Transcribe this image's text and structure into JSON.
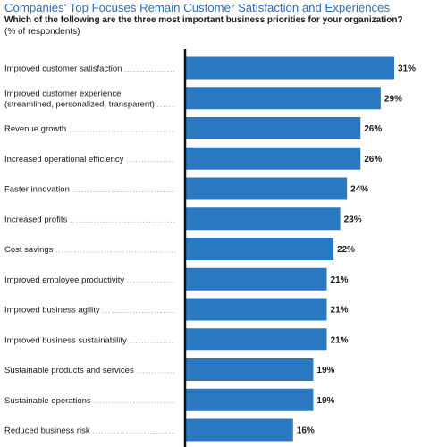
{
  "header": {
    "title": "Companies' Top Focuses Remain Customer Satisfaction and Experiences",
    "subtitle": "Which of the following are the three most important business priorities for your organization?",
    "note": "(% of respondents)"
  },
  "colors": {
    "bar": "#2b78c2",
    "axis": "#111111",
    "title": "#2e6fb4"
  },
  "chart_data": {
    "type": "bar",
    "orientation": "horizontal",
    "title": "Companies' Top Focuses Remain Customer Satisfaction and Experiences",
    "subtitle": "Which of the following are the three most important business priorities for your organization?",
    "unit": "(% of respondents)",
    "categories": [
      [
        "Improved customer satisfaction"
      ],
      [
        "Improved customer experience",
        "(streamlined, personalized, transparent)"
      ],
      [
        "Revenue growth"
      ],
      [
        "Increased operational efficiency"
      ],
      [
        "Faster innovation"
      ],
      [
        "Increased profits"
      ],
      [
        "Cost savings"
      ],
      [
        "Improved employee productivity"
      ],
      [
        "Improved business agility"
      ],
      [
        "Improved business sustainability"
      ],
      [
        "Sustainable products and services"
      ],
      [
        "Sustainable operations"
      ],
      [
        "Reduced business risk"
      ]
    ],
    "values": [
      31,
      29,
      26,
      26,
      24,
      23,
      22,
      21,
      21,
      21,
      19,
      19,
      16
    ],
    "value_labels": [
      "31%",
      "29%",
      "26%",
      "26%",
      "24%",
      "23%",
      "22%",
      "21%",
      "21%",
      "21%",
      "19%",
      "19%",
      "16%"
    ],
    "xlim": [
      0,
      31
    ],
    "grid": false,
    "legend": "none"
  }
}
